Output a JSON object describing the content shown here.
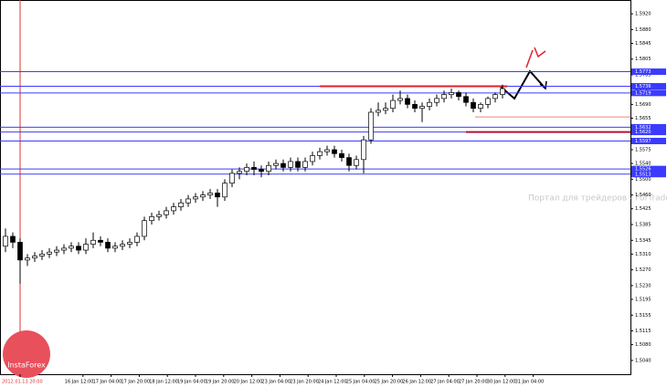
{
  "chart_data": {
    "type": "candlestick",
    "up_color": "#ffffff",
    "down_color": "#000000",
    "level_color": "#3b3bff",
    "ylim": [
      1.5005,
      1.5955
    ],
    "yticks": [
      {
        "value": 1.592,
        "label": "1.5920"
      },
      {
        "value": 1.588,
        "label": "1.5880"
      },
      1.5845,
      1.5805,
      1.5765,
      {
        "value": 1.573,
        "label": "1.5730"
      },
      {
        "value": 1.569,
        "label": "1.5690"
      },
      1.5655,
      1.5615,
      1.5575,
      {
        "value": 1.554,
        "label": "1.5540"
      },
      {
        "value": 1.55,
        "label": "1.5500"
      },
      {
        "value": 1.546,
        "label": "1.5460"
      },
      1.5425,
      1.5385,
      1.5345,
      {
        "value": 1.531,
        "label": "1.5310"
      },
      {
        "value": 1.527,
        "label": "1.5270"
      },
      {
        "value": 1.523,
        "label": "1.5230"
      },
      1.5195,
      1.5155,
      1.5115,
      {
        "value": 1.508,
        "label": "1.5080"
      },
      {
        "value": 1.504,
        "label": "1.5040"
      }
    ],
    "levels": [
      1.5773,
      1.5736,
      1.5719,
      1.5632,
      {
        "value": 1.562,
        "label": "1.5620"
      },
      1.5597,
      1.5526,
      1.5513
    ],
    "marked_levels": [
      {
        "value": 1.5736,
        "color": "#e0202a"
      },
      {
        "value": 1.562,
        "color": "#b0103a"
      },
      {
        "value": 1.5658,
        "color": "#f08080"
      }
    ],
    "time_labels": [
      "2012.01.13 20:00",
      "16 Jan 12:00",
      "17 Jan 04:00",
      "17 Jan 20:00",
      "18 Jan 12:00",
      "19 Jan 04:00",
      "19 Jan 20:00",
      "20 Jan 12:00",
      "23 Jan 04:00",
      "23 Jan 20:00",
      "24 Jan 12:00",
      "25 Jan 04:00",
      "25 Jan 20:00",
      "26 Jan 12:00",
      "27 Jan 04:00",
      "27 Jan 20:00",
      "30 Jan 12:00",
      "31 Jan 04:00"
    ],
    "watermark": "Портал для трейдеров - ForTrader.ru",
    "logo": "InstaForex",
    "candles": [
      [
        1.533,
        1.5375,
        1.5315,
        1.5355
      ],
      [
        1.5355,
        1.5365,
        1.5325,
        1.534
      ],
      [
        1.534,
        1.535,
        1.5235,
        1.5295
      ],
      [
        1.5295,
        1.531,
        1.528,
        1.53
      ],
      [
        1.53,
        1.5315,
        1.529,
        1.5305
      ],
      [
        1.5305,
        1.532,
        1.5295,
        1.531
      ],
      [
        1.531,
        1.5325,
        1.53,
        1.5315
      ],
      [
        1.5315,
        1.533,
        1.5305,
        1.532
      ],
      [
        1.532,
        1.5335,
        1.531,
        1.5325
      ],
      [
        1.5325,
        1.534,
        1.5315,
        1.533
      ],
      [
        1.533,
        1.534,
        1.531,
        1.532
      ],
      [
        1.532,
        1.535,
        1.531,
        1.5335
      ],
      [
        1.5335,
        1.5365,
        1.5325,
        1.5345
      ],
      [
        1.5345,
        1.5355,
        1.533,
        1.534
      ],
      [
        1.534,
        1.535,
        1.5315,
        1.5325
      ],
      [
        1.5325,
        1.534,
        1.5315,
        1.533
      ],
      [
        1.533,
        1.5345,
        1.532,
        1.5335
      ],
      [
        1.5335,
        1.535,
        1.5325,
        1.534
      ],
      [
        1.534,
        1.5365,
        1.533,
        1.5355
      ],
      [
        1.5355,
        1.5405,
        1.5345,
        1.5395
      ],
      [
        1.5395,
        1.5415,
        1.5385,
        1.5405
      ],
      [
        1.5405,
        1.542,
        1.5395,
        1.541
      ],
      [
        1.541,
        1.543,
        1.54,
        1.542
      ],
      [
        1.542,
        1.544,
        1.541,
        1.543
      ],
      [
        1.543,
        1.545,
        1.542,
        1.544
      ],
      [
        1.544,
        1.546,
        1.543,
        1.545
      ],
      [
        1.545,
        1.5465,
        1.544,
        1.5455
      ],
      [
        1.5455,
        1.547,
        1.5445,
        1.546
      ],
      [
        1.546,
        1.5475,
        1.545,
        1.5465
      ],
      [
        1.5465,
        1.5475,
        1.543,
        1.5455
      ],
      [
        1.5455,
        1.55,
        1.5445,
        1.549
      ],
      [
        1.549,
        1.5525,
        1.548,
        1.5515
      ],
      [
        1.5515,
        1.553,
        1.55,
        1.552
      ],
      [
        1.552,
        1.554,
        1.551,
        1.553
      ],
      [
        1.553,
        1.5545,
        1.551,
        1.5525
      ],
      [
        1.5525,
        1.5535,
        1.5505,
        1.552
      ],
      [
        1.552,
        1.5545,
        1.551,
        1.5535
      ],
      [
        1.5535,
        1.555,
        1.5525,
        1.554
      ],
      [
        1.554,
        1.555,
        1.552,
        1.553
      ],
      [
        1.553,
        1.5555,
        1.552,
        1.5545
      ],
      [
        1.5545,
        1.5555,
        1.552,
        1.553
      ],
      [
        1.553,
        1.5555,
        1.552,
        1.5545
      ],
      [
        1.5545,
        1.557,
        1.5535,
        1.556
      ],
      [
        1.556,
        1.558,
        1.555,
        1.557
      ],
      [
        1.557,
        1.5585,
        1.556,
        1.5575
      ],
      [
        1.5575,
        1.5585,
        1.5555,
        1.5565
      ],
      [
        1.5565,
        1.5575,
        1.5545,
        1.5555
      ],
      [
        1.5555,
        1.5565,
        1.552,
        1.5535
      ],
      [
        1.5535,
        1.556,
        1.5525,
        1.555
      ],
      [
        1.555,
        1.561,
        1.5515,
        1.56
      ],
      [
        1.56,
        1.568,
        1.559,
        1.567
      ],
      [
        1.567,
        1.5695,
        1.566,
        1.5675
      ],
      [
        1.5675,
        1.5695,
        1.5665,
        1.568
      ],
      [
        1.568,
        1.5715,
        1.567,
        1.57
      ],
      [
        1.57,
        1.5725,
        1.569,
        1.5705
      ],
      [
        1.5705,
        1.5715,
        1.568,
        1.569
      ],
      [
        1.569,
        1.57,
        1.567,
        1.568
      ],
      [
        1.568,
        1.5695,
        1.5645,
        1.5685
      ],
      [
        1.5685,
        1.5705,
        1.5675,
        1.5695
      ],
      [
        1.5695,
        1.5715,
        1.5685,
        1.5705
      ],
      [
        1.5705,
        1.5725,
        1.5695,
        1.5715
      ],
      [
        1.5715,
        1.573,
        1.5705,
        1.572
      ],
      [
        1.572,
        1.5725,
        1.57,
        1.571
      ],
      [
        1.571,
        1.572,
        1.5685,
        1.5695
      ],
      [
        1.5695,
        1.5705,
        1.567,
        1.568
      ],
      [
        1.568,
        1.5695,
        1.567,
        1.569
      ],
      [
        1.569,
        1.571,
        1.568,
        1.5705
      ],
      [
        1.5705,
        1.572,
        1.5695,
        1.5715
      ],
      [
        1.5715,
        1.574,
        1.5705,
        1.573
      ]
    ]
  }
}
